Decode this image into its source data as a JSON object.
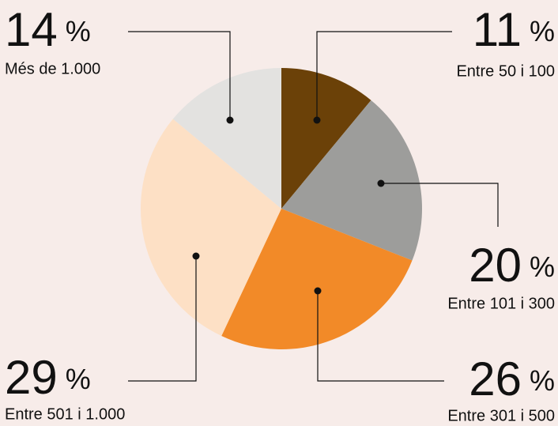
{
  "chart_data": {
    "type": "pie",
    "categories": [
      "Entre 50 i 100",
      "Entre 101 i 300",
      "Entre 301 i 500",
      "Entre 501 i 1.000",
      "Més de 1.000"
    ],
    "values": [
      11,
      20,
      26,
      29,
      14
    ],
    "value_labels": [
      "11 %",
      "20 %",
      "26 %",
      "29 %",
      "14 %"
    ],
    "colors": [
      "#6b4108",
      "#9d9d9b",
      "#f28a28",
      "#fde0c5",
      "#e3e2e0"
    ]
  }
}
